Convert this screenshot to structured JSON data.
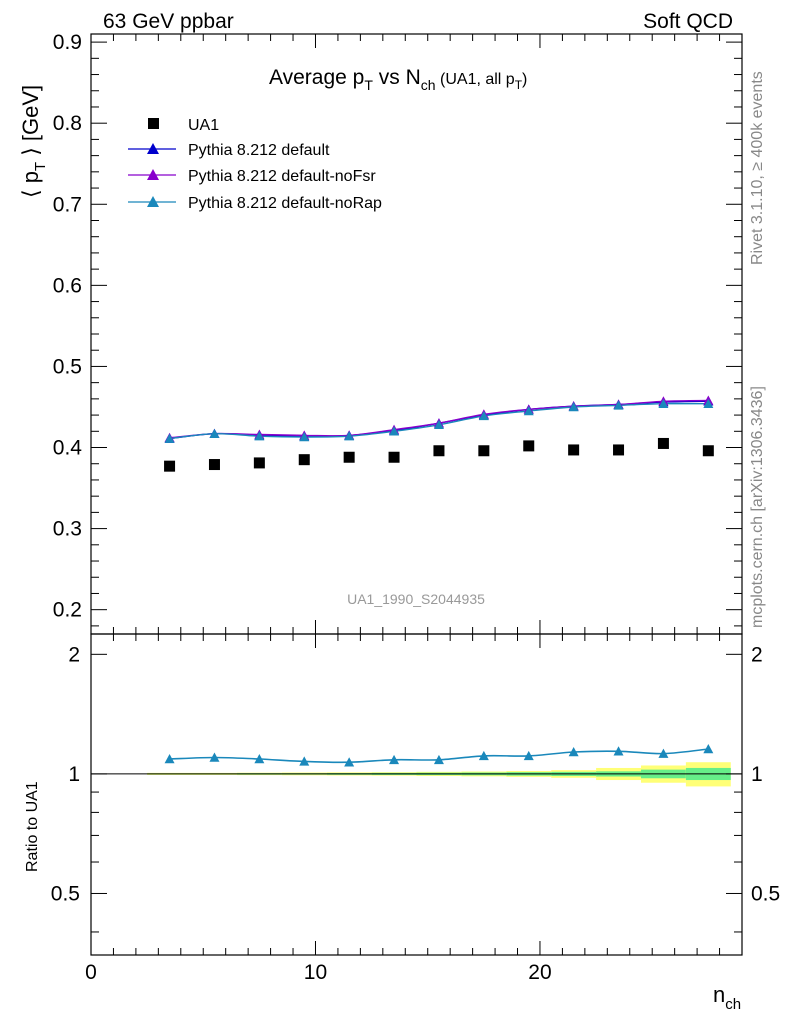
{
  "header": {
    "left": "63 GeV ppbar",
    "right": "Soft QCD"
  },
  "side_text": {
    "rivet": "Rivet 3.1.10, ≥ 400k events",
    "mcplots": "mcplots.cern.ch [arXiv:1306.3436]"
  },
  "analysis_id": "UA1_1990_S2044935",
  "chart_data": [
    {
      "type": "scatter",
      "title_main": "Average p",
      "title_sub1": "T",
      "title_mid": " vs N",
      "title_sub2": "ch",
      "title_paren": " (UA1, all p",
      "title_sub3": "T",
      "title_close": ")",
      "ylabel_pre": "⟨ p",
      "ylabel_sub": "T",
      "ylabel_post": " ⟩ [GeV]",
      "xlim": [
        0,
        29
      ],
      "ylim": [
        0.17,
        0.91
      ],
      "yticks": [
        0.2,
        0.3,
        0.4,
        0.5,
        0.6,
        0.7,
        0.8,
        0.9
      ],
      "ytick_labels": [
        "0.2",
        "0.3",
        "0.4",
        "0.5",
        "0.6",
        "0.7",
        "0.8",
        "0.9"
      ],
      "legend_position": "top-left",
      "data": {
        "name": "UA1",
        "x": [
          3.5,
          5.5,
          7.5,
          9.5,
          11.5,
          13.5,
          15.5,
          17.5,
          19.5,
          21.5,
          23.5,
          25.5,
          27.5
        ],
        "y": [
          0.377,
          0.379,
          0.381,
          0.385,
          0.388,
          0.388,
          0.396,
          0.396,
          0.402,
          0.397,
          0.397,
          0.405,
          0.396
        ],
        "color": "#000000"
      },
      "series": [
        {
          "name": "Pythia 8.212 default",
          "color": "#0000cc",
          "y": [
            0.411,
            0.417,
            0.415,
            0.414,
            0.415,
            0.421,
            0.43,
            0.44,
            0.447,
            0.451,
            0.453,
            0.456,
            0.457
          ]
        },
        {
          "name": "Pythia 8.212 default-noFsr",
          "color": "#8800cc",
          "y": [
            0.412,
            0.417,
            0.416,
            0.415,
            0.415,
            0.422,
            0.43,
            0.441,
            0.447,
            0.451,
            0.453,
            0.457,
            0.458
          ]
        },
        {
          "name": "Pythia 8.212 default-noRap",
          "color": "#1a88bb",
          "y": [
            0.411,
            0.417,
            0.414,
            0.413,
            0.414,
            0.42,
            0.428,
            0.439,
            0.445,
            0.45,
            0.452,
            0.454,
            0.454
          ]
        }
      ]
    },
    {
      "type": "line",
      "ylabel": "Ratio to UA1",
      "xlabel_main": "n",
      "xlabel_sub": "ch",
      "xlim": [
        0,
        29
      ],
      "ylim": [
        0.35,
        2.25
      ],
      "yticks": [
        0.5,
        1,
        2
      ],
      "ytick_labels": [
        "0.5",
        "1",
        "2"
      ],
      "xticks": [
        0,
        10,
        20
      ],
      "xtick_labels": [
        "0",
        "10",
        "20"
      ],
      "ratio": [
        1.09,
        1.1,
        1.09,
        1.075,
        1.07,
        1.085,
        1.085,
        1.11,
        1.11,
        1.135,
        1.14,
        1.125,
        1.155
      ],
      "ratio_color": "#1a88bb",
      "bands": {
        "bin_edges": [
          2.5,
          4.5,
          6.5,
          8.5,
          10.5,
          12.5,
          14.5,
          16.5,
          18.5,
          20.5,
          22.5,
          24.5,
          26.5,
          28.5
        ],
        "stat": [
          0.003,
          0.003,
          0.004,
          0.004,
          0.005,
          0.006,
          0.007,
          0.008,
          0.01,
          0.012,
          0.015,
          0.025,
          0.035
        ],
        "total": [
          0.006,
          0.006,
          0.007,
          0.008,
          0.009,
          0.01,
          0.012,
          0.014,
          0.017,
          0.022,
          0.035,
          0.05,
          0.07
        ],
        "stat_color": "#66ee88",
        "total_color": "#ffff77"
      }
    }
  ]
}
